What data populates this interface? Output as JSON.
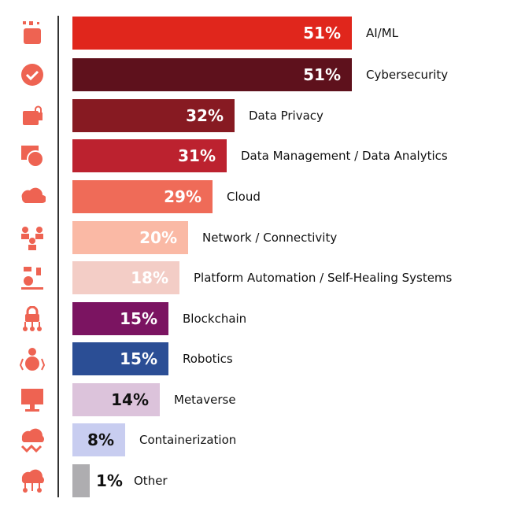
{
  "chart_data": {
    "type": "bar",
    "orientation": "horizontal",
    "categories": [
      "AI/ML",
      "Cybersecurity",
      "Data Privacy",
      "Data Management / Data Analytics",
      "Cloud",
      "Network / Connectivity",
      "Platform Automation / Self-Healing Systems",
      "Blockchain",
      "Robotics",
      "Metaverse",
      "Containerization",
      "Other"
    ],
    "values": [
      51,
      51,
      32,
      31,
      29,
      20,
      18,
      15,
      15,
      14,
      8,
      1
    ],
    "value_labels": [
      "51%",
      "51%",
      "32%",
      "31%",
      "29%",
      "20%",
      "18%",
      "15%",
      "15%",
      "14%",
      "8%",
      "1%"
    ],
    "colors": [
      "#e0261c",
      "#5e111c",
      "#871a22",
      "#bc222f",
      "#ef6b58",
      "#fab9a5",
      "#f3cdc6",
      "#7b1461",
      "#2b4e95",
      "#dcc3db",
      "#c8cdf0",
      "#aeadb0"
    ],
    "label_colors": [
      "#ffffff",
      "#ffffff",
      "#ffffff",
      "#ffffff",
      "#ffffff",
      "#ffffff",
      "#ffffff",
      "#ffffff",
      "#ffffff",
      "#111111",
      "#111111",
      "#111111"
    ],
    "icons": [
      "ai-head-icon",
      "check-badge-icon",
      "folder-lock-icon",
      "chart-window-icon",
      "cloud-icon",
      "network-people-icon",
      "automation-icon",
      "blockchain-lock-icon",
      "robot-icon",
      "metaverse-screen-icon",
      "container-cloud-icon",
      "cloud-network-icon"
    ],
    "icon_color": "#ee6352",
    "grid": false
  }
}
